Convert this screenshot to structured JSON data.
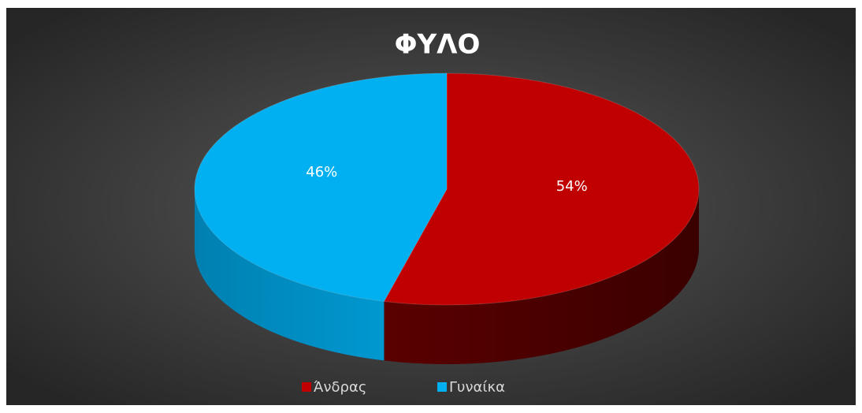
{
  "chart_data": {
    "type": "pie",
    "title": "ΦΥΛΟ",
    "categories": [
      "Άνδρας",
      "Γυναίκα"
    ],
    "values": [
      54,
      46
    ],
    "value_labels": [
      "54%",
      "46%"
    ],
    "colors": [
      "#c00000",
      "#00b0f0"
    ],
    "legend": "bottom"
  }
}
